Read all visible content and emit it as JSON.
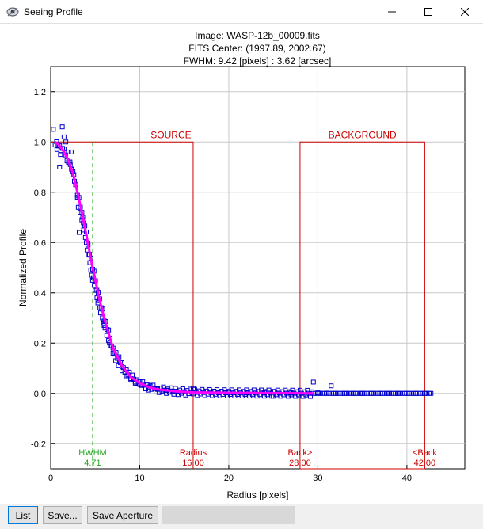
{
  "window": {
    "title": "Seeing Profile",
    "icon": "seeing-profile-app-icon",
    "controls": [
      "minimize-icon",
      "maximize-icon",
      "close-icon"
    ]
  },
  "chart_header": {
    "line1": "Image: WASP-12b_00009.fits",
    "line2": "FITS Center: (1997.89,  2002.67)",
    "line3": "FWHM: 9.42 [pixels] : 3.62 [arcsec]"
  },
  "chart_data": {
    "type": "scatter",
    "title": "Image: WASP-12b_00009.fits",
    "xlabel": "Radius [pixels]",
    "ylabel": "Normalized Profile",
    "xlim": [
      0,
      46.5
    ],
    "ylim": [
      -0.3,
      1.3
    ],
    "x_ticks": [
      0,
      10,
      20,
      30,
      40
    ],
    "y_ticks": [
      -0.2,
      0.0,
      0.2,
      0.4,
      0.6,
      0.8,
      1.0,
      1.2
    ],
    "x_tick_labels": [
      "0",
      "10",
      "20",
      "30",
      "40"
    ],
    "y_tick_labels": [
      "-0.2",
      "0.0",
      "0.2",
      "0.4",
      "0.6",
      "0.8",
      "1.0",
      "1.2"
    ],
    "grid": true,
    "colors": {
      "points": "#0000cc",
      "fit": "#ff00ff",
      "aperture": "#cc0000",
      "hwhm": "#22aa22",
      "grid": "#c8c8c8"
    },
    "apertures": {
      "source": {
        "label": "SOURCE",
        "x0": 0,
        "x1": 16.0,
        "top": 1.0
      },
      "background": {
        "label": "BACKGROUND",
        "x0": 28.0,
        "x1": 42.0,
        "top": 1.0
      }
    },
    "hwhm_x": 4.71,
    "markers": [
      {
        "name": "hwhm",
        "label": "HWHM",
        "value": "4.71",
        "x": 4.71,
        "color": "#22aa22"
      },
      {
        "name": "radius",
        "label": "Radius",
        "value": "16.00",
        "x": 16.0,
        "color": "#cc0000"
      },
      {
        "name": "back-inner",
        "label": "Back>",
        "value": "28.00",
        "x": 28.0,
        "color": "#cc0000"
      },
      {
        "name": "back-outer",
        "label": "<Back",
        "value": "42.00",
        "x": 42.0,
        "color": "#cc0000"
      }
    ],
    "series": [
      {
        "kind": "points",
        "points": [
          [
            0.3,
            1.05
          ],
          [
            1.3,
            1.06
          ],
          [
            0.7,
            0.97
          ],
          [
            1.1,
            0.95
          ],
          [
            1.5,
            1.02
          ],
          [
            1.7,
            1.0
          ],
          [
            2.0,
            0.96
          ],
          [
            2.3,
            0.96
          ],
          [
            1.0,
            0.9
          ],
          [
            2.2,
            0.91
          ],
          [
            2.4,
            0.89
          ],
          [
            2.6,
            0.87
          ],
          [
            2.8,
            0.83
          ],
          [
            3.0,
            0.78
          ],
          [
            3.1,
            0.74
          ],
          [
            3.3,
            0.72
          ],
          [
            3.5,
            0.69
          ],
          [
            3.2,
            0.64
          ],
          [
            3.7,
            0.65
          ],
          [
            3.9,
            0.62
          ],
          [
            4.0,
            0.6
          ],
          [
            4.1,
            0.57
          ],
          [
            4.3,
            0.55
          ],
          [
            4.4,
            0.52
          ],
          [
            4.5,
            0.49
          ],
          [
            4.6,
            0.47
          ],
          [
            4.7,
            0.45
          ],
          [
            4.9,
            0.43
          ],
          [
            5.0,
            0.41
          ],
          [
            5.2,
            0.38
          ],
          [
            5.3,
            0.36
          ],
          [
            5.5,
            0.34
          ],
          [
            5.6,
            0.32
          ],
          [
            5.8,
            0.3
          ],
          [
            5.9,
            0.28
          ],
          [
            6.1,
            0.26
          ],
          [
            6.3,
            0.23
          ],
          [
            6.5,
            0.21
          ],
          [
            6.7,
            0.19
          ],
          [
            7.0,
            0.16
          ],
          [
            7.3,
            0.13
          ],
          [
            7.6,
            0.11
          ],
          [
            8.0,
            0.09
          ],
          [
            8.5,
            0.07
          ],
          [
            9.0,
            0.055
          ],
          [
            9.5,
            0.045
          ],
          [
            10.0,
            0.035
          ],
          [
            11.0,
            0.025
          ],
          [
            12.0,
            0.018
          ],
          [
            13.0,
            0.012
          ],
          [
            14.0,
            0.008
          ],
          [
            15.0,
            0.006
          ],
          [
            16.0,
            0.02
          ],
          [
            18.0,
            0.005
          ],
          [
            20.0,
            0.004
          ],
          [
            22.0,
            0.003
          ],
          [
            24.0,
            0.002
          ],
          [
            25.0,
            0.008
          ],
          [
            27.0,
            0.002
          ],
          [
            29.5,
            0.045
          ],
          [
            31.5,
            0.03
          ],
          [
            30.0,
            0.002
          ],
          [
            31.0,
            0.001
          ],
          [
            32.0,
            0.0
          ],
          [
            33.0,
            0.0
          ],
          [
            34.0,
            0.0
          ],
          [
            35.0,
            0.0
          ],
          [
            36.0,
            0.0
          ],
          [
            37.0,
            0.0
          ],
          [
            38.0,
            0.0
          ],
          [
            39.0,
            0.0
          ],
          [
            40.0,
            0.0
          ],
          [
            41.0,
            0.0
          ],
          [
            42.0,
            0.0
          ],
          [
            42.7,
            0.0
          ],
          [
            3.6,
            0.7
          ],
          [
            4.2,
            0.59
          ],
          [
            4.8,
            0.46
          ],
          [
            5.4,
            0.37
          ],
          [
            6.0,
            0.27
          ],
          [
            6.6,
            0.2
          ]
        ]
      },
      {
        "kind": "fit",
        "points": [
          [
            0.5,
            1.0
          ],
          [
            1.0,
            0.985
          ],
          [
            1.5,
            0.96
          ],
          [
            2.0,
            0.925
          ],
          [
            2.5,
            0.875
          ],
          [
            3.0,
            0.8
          ],
          [
            3.5,
            0.72
          ],
          [
            4.0,
            0.63
          ],
          [
            4.71,
            0.5
          ],
          [
            5.5,
            0.37
          ],
          [
            6.0,
            0.3
          ],
          [
            7.0,
            0.18
          ],
          [
            8.0,
            0.11
          ],
          [
            9.0,
            0.065
          ],
          [
            10.0,
            0.04
          ],
          [
            11.0,
            0.025
          ],
          [
            12.0,
            0.016
          ],
          [
            14.0,
            0.008
          ],
          [
            16.0,
            0.004
          ],
          [
            20.0,
            0.002
          ],
          [
            25.0,
            0.001
          ],
          [
            29.5,
            0.0
          ]
        ]
      }
    ]
  },
  "buttons": {
    "list": "List",
    "save": "Save...",
    "save_aperture": "Save Aperture"
  }
}
